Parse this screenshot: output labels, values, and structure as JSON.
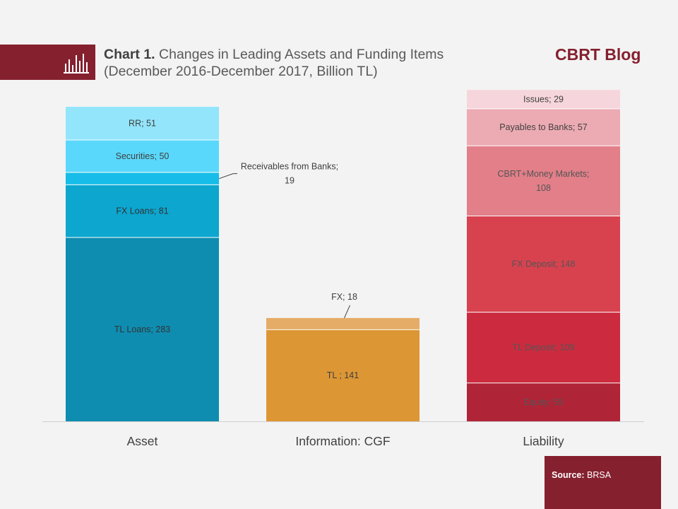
{
  "header": {
    "title_bold": "Chart 1.",
    "title_rest": " Changes in Leading Assets and Funding Items (December 2016-December 2017, Billion TL)",
    "brand": "CBRT Blog",
    "icon": "bar-chart-icon"
  },
  "footer": {
    "source_label": "Source:",
    "source_value": " BRSA"
  },
  "colors": {
    "accent": "#85202f"
  },
  "chart_data": {
    "type": "bar",
    "stacked": true,
    "categories": [
      "Asset",
      "Information: CGF",
      "Liability"
    ],
    "ylim": [
      0,
      520
    ],
    "stacks": [
      {
        "category": "Asset",
        "segments": [
          {
            "label": "TL Loans; 283",
            "value": 283,
            "color": "#0e8db0",
            "text_color": "#333333"
          },
          {
            "label": "FX Loans; 81",
            "value": 81,
            "color": "#0ca6cf",
            "text_color": "#333333"
          },
          {
            "label": "Receivables from Banks;\n19",
            "value": 19,
            "color": "#17bde8",
            "text_color": "#404040",
            "callout": true
          },
          {
            "label": "Securities; 50",
            "value": 50,
            "color": "#5ad8fb",
            "text_color": "#404040"
          },
          {
            "label": "RR; 51",
            "value": 51,
            "color": "#92e5fb",
            "text_color": "#404040"
          }
        ]
      },
      {
        "category": "Information: CGF",
        "segments": [
          {
            "label": "TL ; 141",
            "value": 141,
            "color": "#dd9634",
            "text_color": "#404040"
          },
          {
            "label": "FX; 18",
            "value": 18,
            "color": "#e5ac67",
            "text_color": "#404040",
            "callout": true
          }
        ]
      },
      {
        "category": "Liability",
        "segments": [
          {
            "label": "Equity; 59",
            "value": 59,
            "color": "#b02437",
            "text_color": "#555555"
          },
          {
            "label": "TL Deposit; 109",
            "value": 109,
            "color": "#cc2b3f",
            "text_color": "#555555"
          },
          {
            "label": "FX Deposit; 148",
            "value": 148,
            "color": "#d8424f",
            "text_color": "#555555"
          },
          {
            "label": "CBRT+Money Markets;\n108",
            "value": 108,
            "color": "#e27f89",
            "text_color": "#555555"
          },
          {
            "label": "Payables to Banks; 57",
            "value": 57,
            "color": "#ecabb3",
            "text_color": "#404040"
          },
          {
            "label": "Issues; 29",
            "value": 29,
            "color": "#f6d6dc",
            "text_color": "#404040"
          }
        ]
      }
    ]
  }
}
